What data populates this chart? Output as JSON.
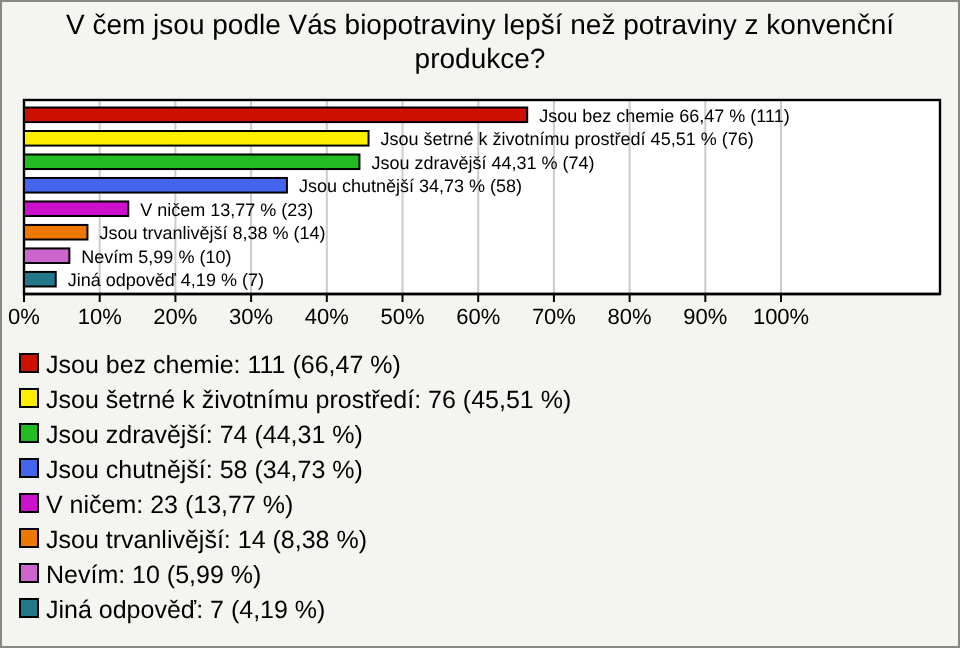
{
  "chart_data": {
    "type": "bar",
    "orientation": "horizontal",
    "title": "V čem jsou podle Vás biopotraviny lepší než potraviny z konvenční produkce?",
    "categories": [
      null
    ],
    "series": [
      {
        "name": "Jsou bez chemie: 111 (66,47 %)",
        "color": "#cc1100",
        "values": [
          66.47
        ],
        "value_labels": [
          "Jsou bez chemie 66,47 % (111)"
        ]
      },
      {
        "name": "Jsou šetrné k životnímu prostředí: 76 (45,51 %)",
        "color": "#ffee00",
        "values": [
          45.51
        ],
        "value_labels": [
          "Jsou šetrné k životnímu prostředí 45,51 % (76)"
        ]
      },
      {
        "name": "Jsou zdravější: 74 (44,31 %)",
        "color": "#22bb22",
        "values": [
          44.31
        ],
        "value_labels": [
          "Jsou zdravější 44,31 % (74)"
        ]
      },
      {
        "name": "Jsou chutnější: 58 (34,73 %)",
        "color": "#4466ee",
        "values": [
          34.73
        ],
        "value_labels": [
          "Jsou chutnější 34,73 % (58)"
        ]
      },
      {
        "name": "V ničem: 23 (13,77 %)",
        "color": "#cc11cc",
        "values": [
          13.77
        ],
        "value_labels": [
          "V ničem 13,77 % (23)"
        ]
      },
      {
        "name": "Jsou trvanlivější: 14 (8,38 %)",
        "color": "#ee7700",
        "values": [
          8.38
        ],
        "value_labels": [
          "Jsou trvanlivější 8,38 % (14)"
        ]
      },
      {
        "name": "Nevím: 10 (5,99 %)",
        "color": "#cc66cc",
        "values": [
          5.99
        ],
        "value_labels": [
          "Nevím 5,99 % (10)"
        ]
      },
      {
        "name": "Jiná odpověď: 7 (4,19 %)",
        "color": "#227788",
        "values": [
          4.19
        ],
        "value_labels": [
          "Jiná odpověď 4,19 % (7)"
        ]
      }
    ],
    "xlim": [
      0,
      121
    ],
    "xticks": [
      {
        "value": 0,
        "label": "0%"
      },
      {
        "value": 10,
        "label": "10%"
      },
      {
        "value": 20,
        "label": "20%"
      },
      {
        "value": 30,
        "label": "30%"
      },
      {
        "value": 40,
        "label": "40%"
      },
      {
        "value": 50,
        "label": "50%"
      },
      {
        "value": 60,
        "label": "60%"
      },
      {
        "value": 70,
        "label": "70%"
      },
      {
        "value": 80,
        "label": "80%"
      },
      {
        "value": 90,
        "label": "90%"
      },
      {
        "value": 100,
        "label": "100%"
      }
    ],
    "grid": "x",
    "legend": "bottom"
  }
}
